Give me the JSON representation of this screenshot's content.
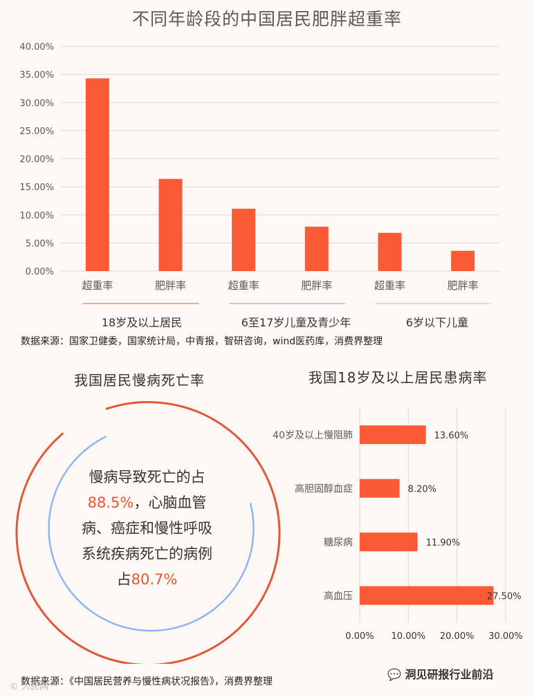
{
  "chart_data": [
    {
      "type": "bar",
      "title": "不同年龄段的中国居民肥胖超重率",
      "categories": [
        "超重率",
        "肥胖率",
        "超重率",
        "肥胖率",
        "超重率",
        "肥胖率"
      ],
      "groups": [
        {
          "name": "18岁及以上居民",
          "color": "#f4a98a"
        },
        {
          "name": "6至17岁儿童及青少年",
          "color": "#b7c8ea"
        },
        {
          "name": "6岁以下儿童",
          "color": "#cde8c7"
        }
      ],
      "values": [
        34.3,
        16.4,
        11.1,
        7.9,
        6.8,
        3.6
      ],
      "y_ticks": [
        "40.00%",
        "35.00%",
        "30.00%",
        "25.00%",
        "20.00%",
        "15.00%",
        "10.00%",
        "5.00%",
        "0.00%"
      ],
      "ylim": [
        0,
        40
      ],
      "grid": true,
      "bar_color": "#fa5a35"
    },
    {
      "type": "bar",
      "orientation": "horizontal",
      "title": "我国18岁及以上居民患病率",
      "categories": [
        "40岁及以上慢阻肺",
        "高胆固醇血症",
        "糖尿病",
        "高血压"
      ],
      "values": [
        13.6,
        8.2,
        11.9,
        27.5
      ],
      "value_labels": [
        "13.60%",
        "8.20%",
        "11.90%",
        "27.50%"
      ],
      "x_ticks": [
        "0.00%",
        "10.00%",
        "20.00%",
        "30.00%"
      ],
      "xlim": [
        0,
        30
      ],
      "grid": true,
      "bar_color": "#fa5a35"
    }
  ],
  "source1": "数据来源：国家卫健委，国家统计局，中青报，智研咨询，wind医药库，消费界整理",
  "circle_section": {
    "title": "我国居民慢病死亡率",
    "text_parts": [
      "慢病导致死亡的占",
      "88.5%",
      "，心脑血管病、癌症和慢性呼吸系统疾病死亡的病例占",
      "80.7%"
    ],
    "outer_color": "#e2563a",
    "inner_color": "#8fb5f0"
  },
  "source2": "数据来源：《中国居民营养与慢性病状况报告》，消费界整理",
  "watermark_right": "洞见研报行业前沿",
  "watermark_left": "© 人民网"
}
